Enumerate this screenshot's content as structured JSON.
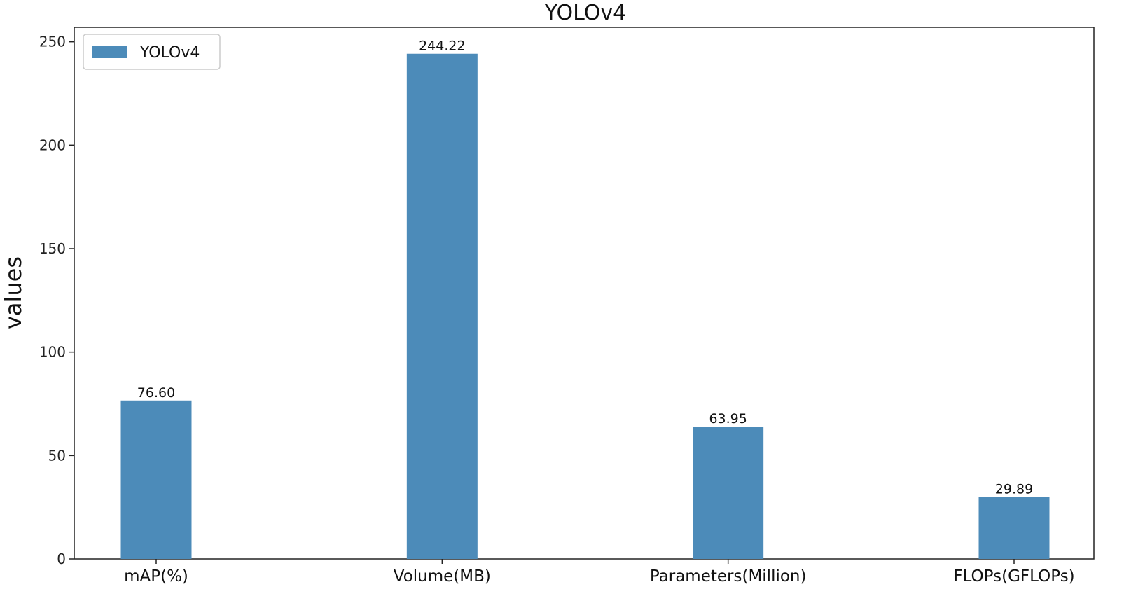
{
  "chart_data": {
    "type": "bar",
    "title": "YOLOv4",
    "xlabel": "",
    "ylabel": "values",
    "categories": [
      "mAP(%)",
      "Volume(MB)",
      "Parameters(Million)",
      "FLOPs(GFLOPs)"
    ],
    "series": [
      {
        "name": "YOLOv4",
        "values": [
          76.6,
          244.22,
          63.95,
          29.89
        ],
        "labels": [
          "76.60",
          "244.22",
          "63.95",
          "29.89"
        ],
        "color": "#4c8bb9"
      }
    ],
    "ylim": [
      0,
      257
    ],
    "yticks": [
      0,
      50,
      100,
      150,
      200,
      250
    ],
    "ytick_labels": [
      "0",
      "50",
      "100",
      "150",
      "200",
      "250"
    ],
    "grid": false,
    "legend": {
      "position": "top-left",
      "entries": [
        "YOLOv4"
      ]
    }
  }
}
